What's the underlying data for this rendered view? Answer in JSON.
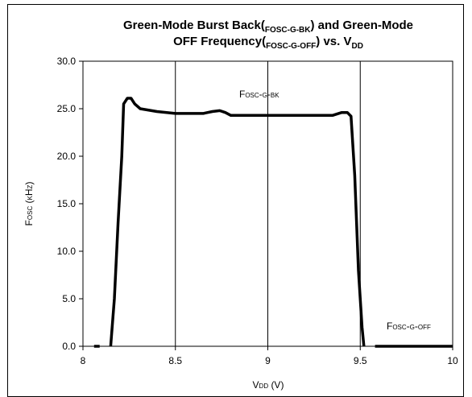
{
  "chart_data": {
    "type": "line",
    "title_lines": [
      [
        "Green-Mode Burst Back(",
        "FOSC-G-BK",
        ") and Green-Mode"
      ],
      [
        "OFF Frequency(",
        "FOSC-G-OFF",
        ") vs. V",
        "DD"
      ]
    ],
    "xlabel": "Vdd (V)",
    "ylabel": "Fosc (kHz)",
    "annotations": [
      "Fosc-g-bk",
      "Fosc-g-off"
    ],
    "x": [
      8.06,
      8.09,
      null,
      8.15,
      8.17,
      8.19,
      8.21,
      8.22,
      8.24,
      8.26,
      8.28,
      8.31,
      8.4,
      8.5,
      8.6,
      8.65,
      8.7,
      8.74,
      8.77,
      8.8,
      9.0,
      9.2,
      9.35,
      9.4,
      9.43,
      9.45,
      9.47,
      9.49,
      9.51,
      9.52,
      null,
      9.58,
      10.0
    ],
    "series": [
      {
        "name": "Fosc",
        "color": "#000000",
        "values": [
          0,
          0,
          null,
          0,
          5,
          13,
          20,
          25.5,
          26.1,
          26.1,
          25.5,
          25,
          24.7,
          24.5,
          24.5,
          24.5,
          24.7,
          24.8,
          24.6,
          24.3,
          24.3,
          24.3,
          24.3,
          24.6,
          24.6,
          24.2,
          18,
          8,
          2,
          0,
          null,
          0,
          0
        ]
      }
    ],
    "xlim": [
      8,
      10
    ],
    "xticks": [
      8,
      8.5,
      9,
      9.5,
      10
    ],
    "ylim": [
      0,
      30
    ],
    "yticks": [
      {
        "value": 0,
        "label": "0.0"
      },
      {
        "value": 5,
        "label": "5.0"
      },
      {
        "value": 10,
        "label": "10.0"
      },
      {
        "value": 15,
        "label": "15.0"
      },
      {
        "value": 20,
        "label": "20.0"
      },
      {
        "value": 25,
        "label": "25.0"
      },
      {
        "value": 30,
        "label": "30.0"
      }
    ],
    "grid": "x"
  }
}
